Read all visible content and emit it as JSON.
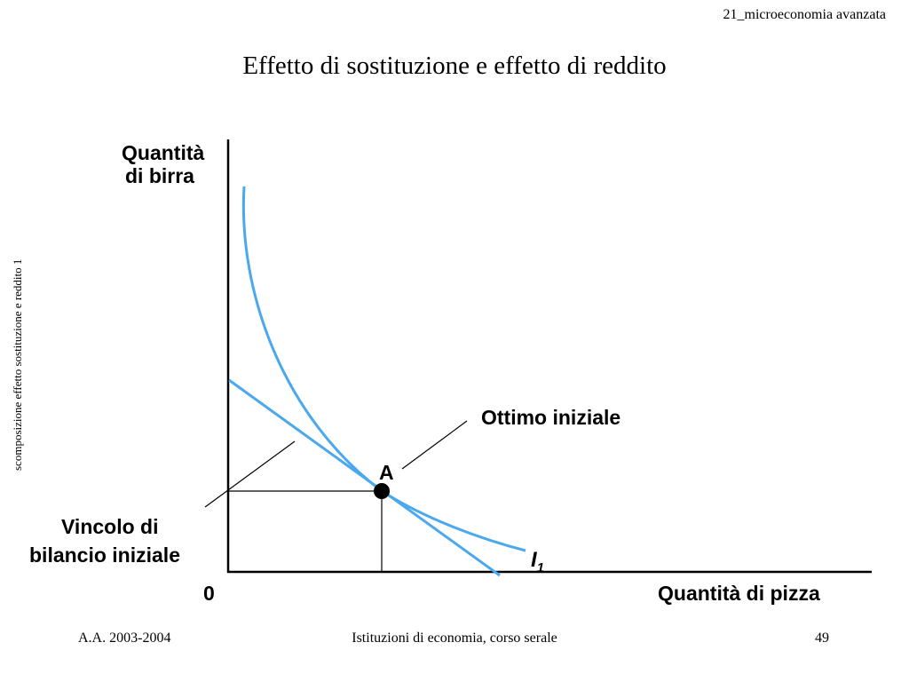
{
  "header": {
    "course_code": "21_microeconomia avanzata"
  },
  "side_caption": "scomposizione effetto sostituzione e reddito 1",
  "slide_title": "Effetto di sostituzione e effetto di reddito",
  "diagram": {
    "y_axis_label_line1": "Quantità",
    "y_axis_label_line2": "di birra",
    "x_axis_label": "Quantità di pizza",
    "origin_label": "0",
    "point_label": "A",
    "optimum_label": "Ottimo iniziale",
    "budget_label_line1": "Vincolo di",
    "budget_label_line2": "bilancio iniziale",
    "curve_label_main": "I",
    "curve_label_sub": "1",
    "curve_color": "#4aa8ee"
  },
  "footer": {
    "academic_year": "A.A. 2003-2004",
    "course_name": "Istituzioni di economia, corso serale",
    "page_number": "49"
  }
}
